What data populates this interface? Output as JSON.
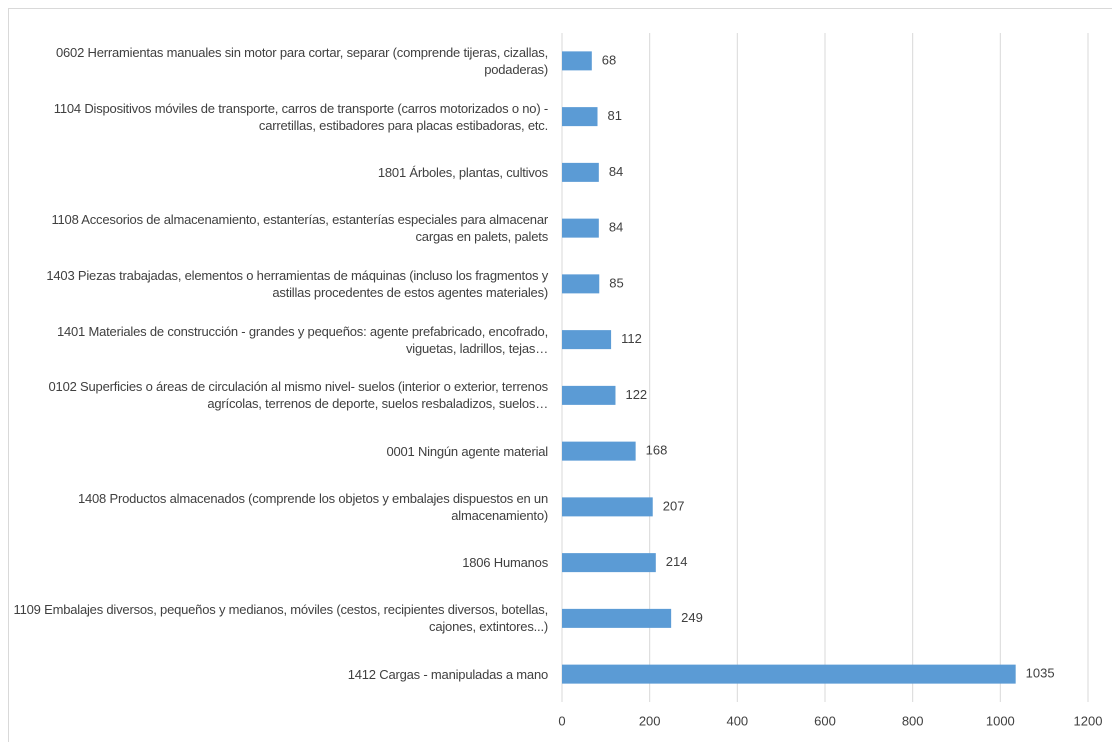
{
  "chart_data": {
    "type": "bar",
    "orientation": "horizontal",
    "categories": [
      "0602 Herramientas manuales sin motor para cortar, separar (comprende tijeras, cizallas, podaderas)",
      "1104 Dispositivos móviles de transporte, carros de transporte (carros motorizados o no) - carretillas, estibadores para placas estibadoras, etc.",
      "1801 Árboles, plantas, cultivos",
      "1108 Accesorios de almacenamiento, estanterías, estanterías especiales para almacenar cargas en palets, palets",
      "1403 Piezas trabajadas, elementos o herramientas de máquinas (incluso los fragmentos y astillas procedentes de estos agentes materiales)",
      "1401 Materiales de construcción - grandes y pequeños: agente prefabricado, encofrado, viguetas, ladrillos, tejas…",
      "0102 Superficies o áreas de circulación al mismo nivel- suelos (interior o exterior, terrenos agrícolas, terrenos de deporte, suelos resbaladizos, suelos…",
      "0001 Ningún agente material",
      "1408 Productos almacenados (comprende los objetos y embalajes dispuestos en un almacenamiento)",
      "1806 Humanos",
      "1109 Embalajes diversos, pequeños y medianos, móviles (cestos, recipientes diversos, botellas, cajones, extintores...)",
      "1412 Cargas - manipuladas a mano"
    ],
    "values": [
      68,
      81,
      84,
      84,
      85,
      112,
      122,
      168,
      207,
      214,
      249,
      1035
    ],
    "color": "#5b9bd5",
    "xlim": [
      0,
      1200
    ],
    "xticks": [
      0,
      200,
      400,
      600,
      800,
      1000,
      1200
    ],
    "grid": true
  }
}
